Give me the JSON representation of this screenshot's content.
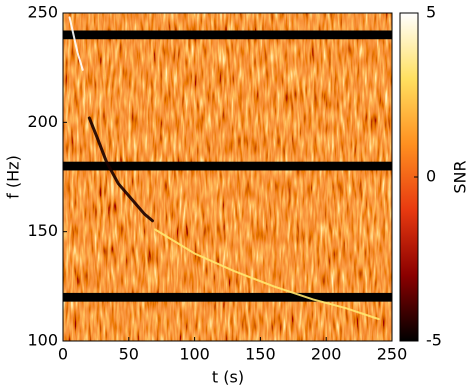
{
  "chart_data": {
    "type": "heatmap",
    "xlabel": "t (s)",
    "ylabel": "f (Hz)",
    "colorbar_label": "SNR",
    "xlim": [
      0,
      250
    ],
    "xticks": [
      0,
      50,
      100,
      150,
      200,
      250
    ],
    "ylim": [
      100,
      250
    ],
    "yticks": [
      100,
      150,
      200,
      250
    ],
    "clim": [
      -5,
      5
    ],
    "cticks": [
      -5,
      0,
      5
    ],
    "colormap": [
      "#000000",
      "#8b0000",
      "#e83a10",
      "#ff9020",
      "#ffe060",
      "#ffffff"
    ],
    "notches": [
      [
        118,
        122
      ],
      [
        178,
        182
      ],
      [
        238,
        242
      ]
    ],
    "tracks": [
      {
        "color": "#1a0000",
        "x": [
          20,
          26,
          33,
          42,
          52,
          62,
          68
        ],
        "y": [
          202,
          193,
          182,
          172,
          165,
          158,
          155
        ]
      },
      {
        "color": "#ffe870",
        "x": [
          70,
          100,
          130,
          160,
          190,
          215,
          240
        ],
        "y": [
          151,
          140,
          132,
          125,
          119,
          115,
          110
        ]
      },
      {
        "color": "#ffffff",
        "x": [
          5,
          8,
          11,
          15
        ],
        "y": [
          248,
          240,
          232,
          224
        ]
      }
    ]
  }
}
